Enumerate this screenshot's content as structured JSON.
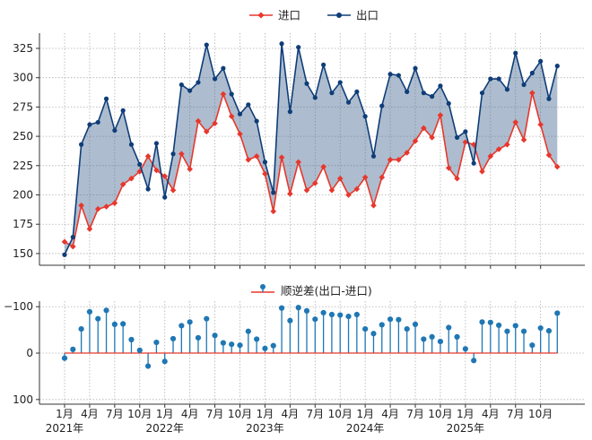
{
  "chart_data": [
    {
      "type": "line",
      "title": "",
      "xlabel": "",
      "ylabel": "",
      "ylim": [
        140,
        338
      ],
      "yticks": [
        150,
        175,
        200,
        225,
        250,
        275,
        300,
        325
      ],
      "grid": true,
      "legend_position": "top-center",
      "fill_between": true,
      "x": [
        "2021-01",
        "2021-02",
        "2021-03",
        "2021-04",
        "2021-05",
        "2021-06",
        "2021-07",
        "2021-08",
        "2021-09",
        "2021-10",
        "2021-11",
        "2021-12",
        "2022-01",
        "2022-02",
        "2022-03",
        "2022-04",
        "2022-05",
        "2022-06",
        "2022-07",
        "2022-08",
        "2022-09",
        "2022-10",
        "2022-11",
        "2022-12",
        "2023-01",
        "2023-02",
        "2023-03",
        "2023-04",
        "2023-05",
        "2023-06",
        "2023-07",
        "2023-08",
        "2023-09",
        "2023-10",
        "2023-11",
        "2023-12",
        "2024-01",
        "2024-02",
        "2024-03",
        "2024-04",
        "2024-05",
        "2024-06",
        "2024-07",
        "2024-08",
        "2024-09",
        "2024-10",
        "2024-11",
        "2024-12",
        "2025-01",
        "2025-02",
        "2025-03",
        "2025-04",
        "2025-05",
        "2025-06",
        "2025-07",
        "2025-08",
        "2025-09",
        "2025-10",
        "2025-11",
        "2025-12"
      ],
      "series": [
        {
          "name": "进口",
          "color": "#e8372c",
          "marker": "diamond",
          "values": [
            160,
            156,
            191,
            171,
            188,
            190,
            193,
            209,
            214,
            220,
            233,
            221,
            216,
            204,
            235,
            222,
            263,
            254,
            261,
            286,
            267,
            252,
            230,
            233,
            218,
            186,
            232,
            201,
            228,
            204,
            210,
            224,
            204,
            214,
            200,
            205,
            215,
            191,
            215,
            230,
            230,
            236,
            246,
            257,
            249,
            268,
            223,
            214,
            245,
            243,
            220,
            233,
            239,
            243,
            262,
            247,
            287,
            260,
            234,
            224
          ]
        },
        {
          "name": "出口",
          "color": "#0f3d78",
          "marker": "circle",
          "values": [
            149,
            164,
            243,
            260,
            262,
            282,
            255,
            272,
            243,
            226,
            205,
            244,
            198,
            235,
            294,
            289,
            296,
            328,
            299,
            308,
            286,
            269,
            277,
            263,
            228,
            202,
            329,
            271,
            326,
            295,
            283,
            311,
            287,
            296,
            279,
            288,
            267,
            233,
            276,
            303,
            302,
            288,
            308,
            287,
            284,
            293,
            278,
            249,
            254,
            227,
            287,
            299,
            299,
            290,
            321,
            294,
            304,
            314,
            282,
            310
          ]
        }
      ],
      "fill_color": "#4a6d95",
      "tick_labels": {
        "y": [
          "150",
          "175",
          "200",
          "225",
          "250",
          "275",
          "300",
          "325"
        ]
      }
    },
    {
      "type": "stem",
      "title": "",
      "xlabel": "",
      "ylabel": "",
      "ylim": [
        -110,
        112
      ],
      "yticks": [
        -100,
        0,
        100
      ],
      "grid": true,
      "legend_position": "top-center",
      "baseline_color": "#e8372c",
      "series": [
        {
          "name": "顺逆差(出口-进口)",
          "color": "#1f77b4",
          "values": [
            -11,
            8,
            52,
            89,
            74,
            92,
            62,
            63,
            29,
            6,
            -28,
            23,
            -18,
            31,
            59,
            67,
            33,
            74,
            38,
            22,
            19,
            17,
            47,
            30,
            10,
            16,
            97,
            70,
            98,
            91,
            73,
            87,
            83,
            82,
            79,
            83,
            52,
            42,
            61,
            73,
            72,
            52,
            62,
            30,
            35,
            25,
            55,
            35,
            9,
            -16,
            67,
            66,
            60,
            47,
            59,
            47,
            17,
            54,
            48,
            86
          ]
        }
      ],
      "tick_labels": {
        "y": [
          "100",
          "0",
          "−100"
        ]
      }
    }
  ],
  "x_axis": {
    "month_labels": [
      "1月",
      "4月",
      "7月",
      "10月",
      "1月",
      "4月",
      "7月",
      "10月",
      "1月",
      "4月",
      "7月",
      "10月",
      "1月",
      "4月",
      "7月",
      "10月",
      "1月",
      "4月",
      "7月",
      "10月"
    ],
    "month_index": [
      0,
      3,
      6,
      9,
      12,
      15,
      18,
      21,
      24,
      27,
      30,
      33,
      36,
      39,
      42,
      45,
      48,
      51,
      54,
      57
    ],
    "year_labels": [
      "2021年",
      "2022年",
      "2023年",
      "2024年",
      "2025年"
    ],
    "year_index": [
      0,
      12,
      24,
      36,
      48
    ]
  }
}
